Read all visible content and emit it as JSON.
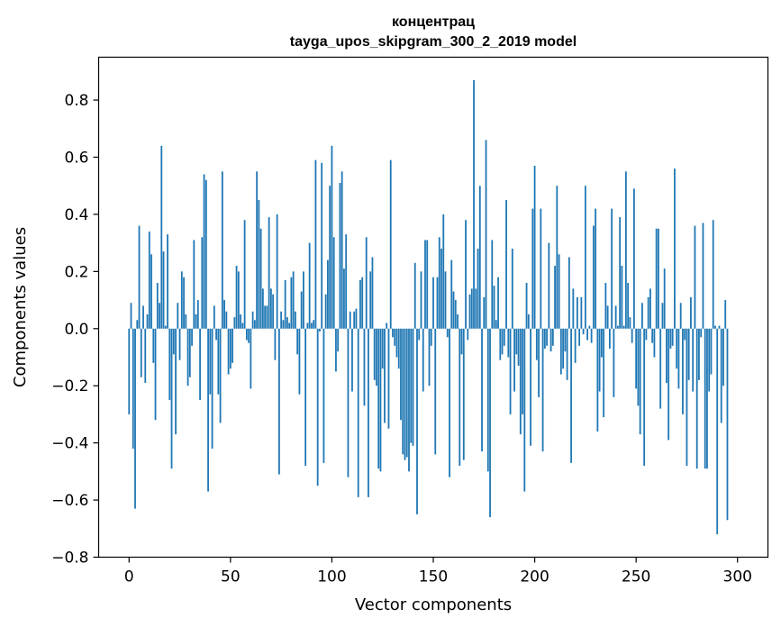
{
  "chart_data": {
    "type": "bar",
    "title": "концентрац",
    "subtitle": "tayga_upos_skipgram_300_2_2019 model",
    "xlabel": "Vector components",
    "ylabel": "Components values",
    "xlim": [
      -15,
      315
    ],
    "ylim": [
      -0.8,
      0.95
    ],
    "x_ticks": [
      0,
      50,
      100,
      150,
      200,
      250,
      300
    ],
    "x_tick_labels": [
      "0",
      "50",
      "100",
      "150",
      "200",
      "250",
      "300"
    ],
    "y_ticks": [
      -0.8,
      -0.6,
      -0.4,
      -0.2,
      0.0,
      0.2,
      0.4,
      0.6,
      0.8
    ],
    "y_tick_labels": [
      "−0.8",
      "−0.6",
      "−0.4",
      "−0.2",
      "0.0",
      "0.2",
      "0.4",
      "0.6",
      "0.8"
    ],
    "bar_color": "#1f77b4",
    "grid": false,
    "values": [
      -0.3,
      0.09,
      -0.42,
      -0.63,
      0.03,
      0.36,
      -0.17,
      0.08,
      -0.19,
      0.05,
      0.34,
      0.26,
      -0.12,
      -0.32,
      0.16,
      0.09,
      0.64,
      0.27,
      0.01,
      0.33,
      -0.25,
      -0.49,
      -0.09,
      -0.37,
      0.09,
      -0.11,
      0.2,
      0.18,
      0.05,
      -0.2,
      -0.17,
      -0.06,
      0.31,
      0.05,
      0.1,
      -0.25,
      0.32,
      0.54,
      0.52,
      -0.57,
      -0.23,
      -0.42,
      0.08,
      -0.04,
      -0.23,
      -0.33,
      0.55,
      0.1,
      0.06,
      -0.16,
      -0.14,
      -0.12,
      0.04,
      0.22,
      0.2,
      0.05,
      0.02,
      0.38,
      -0.04,
      -0.05,
      -0.21,
      0.06,
      0.03,
      0.55,
      0.45,
      0.35,
      0.14,
      0.08,
      0.08,
      0.39,
      0.14,
      0.12,
      -0.11,
      0.4,
      -0.51,
      0.06,
      0.03,
      0.17,
      0.04,
      0.02,
      0.18,
      0.2,
      0.06,
      -0.09,
      -0.23,
      0.13,
      0.2,
      -0.48,
      0.02,
      0.3,
      0.02,
      0.03,
      0.59,
      -0.55,
      -0.01,
      0.58,
      -0.47,
      0.12,
      0.24,
      0.5,
      0.64,
      0.32,
      -0.15,
      -0.08,
      0.51,
      0.55,
      0.21,
      0.33,
      -0.52,
      0.06,
      -0.22,
      0.06,
      0.07,
      -0.59,
      0.17,
      0.18,
      -0.27,
      0.32,
      -0.59,
      0.2,
      0.25,
      -0.18,
      -0.2,
      -0.49,
      -0.5,
      -0.14,
      -0.33,
      0.02,
      -0.35,
      0.59,
      -0.03,
      -0.06,
      -0.1,
      -0.14,
      -0.32,
      -0.44,
      -0.46,
      -0.45,
      -0.5,
      -0.4,
      -0.41,
      0.23,
      -0.65,
      -0.04,
      0.2,
      -0.22,
      0.31,
      0.31,
      -0.2,
      -0.06,
      0.18,
      -0.44,
      0.18,
      0.32,
      0.28,
      0.4,
      0.2,
      -0.03,
      -0.52,
      0.24,
      0.13,
      0.1,
      0.05,
      -0.48,
      -0.09,
      -0.46,
      0.38,
      -0.04,
      0.12,
      0.14,
      0.87,
      0.14,
      0.28,
      0.5,
      -0.43,
      0.11,
      0.66,
      -0.5,
      -0.66,
      0.31,
      0.15,
      0.03,
      0.18,
      -0.11,
      -0.09,
      -0.06,
      0.45,
      -0.1,
      -0.3,
      0.28,
      -0.22,
      -0.09,
      -0.13,
      -0.37,
      -0.3,
      -0.57,
      0.16,
      0.05,
      -0.41,
      0.42,
      0.57,
      -0.11,
      -0.24,
      0.42,
      -0.43,
      -0.07,
      -0.06,
      0.3,
      -0.08,
      -0.06,
      0.22,
      0.5,
      0.26,
      -0.16,
      -0.14,
      -0.08,
      -0.18,
      0.25,
      -0.47,
      0.14,
      -0.12,
      0.11,
      -0.06,
      0.11,
      -0.02,
      0.5,
      -0.04,
      0.01,
      -0.05,
      0.36,
      0.42,
      -0.36,
      -0.22,
      -0.1,
      -0.31,
      0.16,
      0.08,
      -0.07,
      0.42,
      -0.24,
      0.08,
      0.01,
      0.39,
      0.22,
      0.01,
      0.55,
      0.16,
      0.04,
      -0.05,
      0.49,
      -0.21,
      -0.27,
      -0.37,
      0.09,
      -0.48,
      -0.04,
      0.11,
      0.14,
      -0.05,
      -0.1,
      0.35,
      0.35,
      -0.28,
      0.09,
      0.21,
      -0.19,
      -0.39,
      -0.07,
      -0.06,
      0.56,
      -0.14,
      -0.21,
      0.09,
      -0.3,
      -0.04,
      -0.48,
      -0.18,
      0.11,
      -0.22,
      0.36,
      -0.49,
      -0.18,
      -0.03,
      0.37,
      -0.49,
      -0.49,
      -0.22,
      -0.16,
      0.38,
      0.01,
      -0.72,
      0.01,
      -0.33,
      -0.2,
      0.1,
      -0.67
    ]
  }
}
